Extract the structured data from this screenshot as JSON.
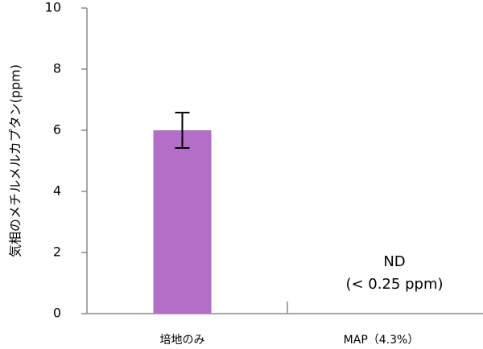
{
  "chart_data": {
    "type": "bar",
    "y_label": "気相のメチルメルカプタン(ppm)",
    "categories": [
      "培地のみ",
      "MAP（4.3%）"
    ],
    "values": [
      6.0,
      null
    ],
    "errors": [
      0.58,
      null
    ],
    "color": "#b36ec8",
    "ylim": [
      0,
      10
    ],
    "yticks": [
      0,
      2,
      4,
      6,
      8,
      10
    ],
    "annotations": [
      "ND",
      "(< 0.25 ppm)"
    ]
  }
}
